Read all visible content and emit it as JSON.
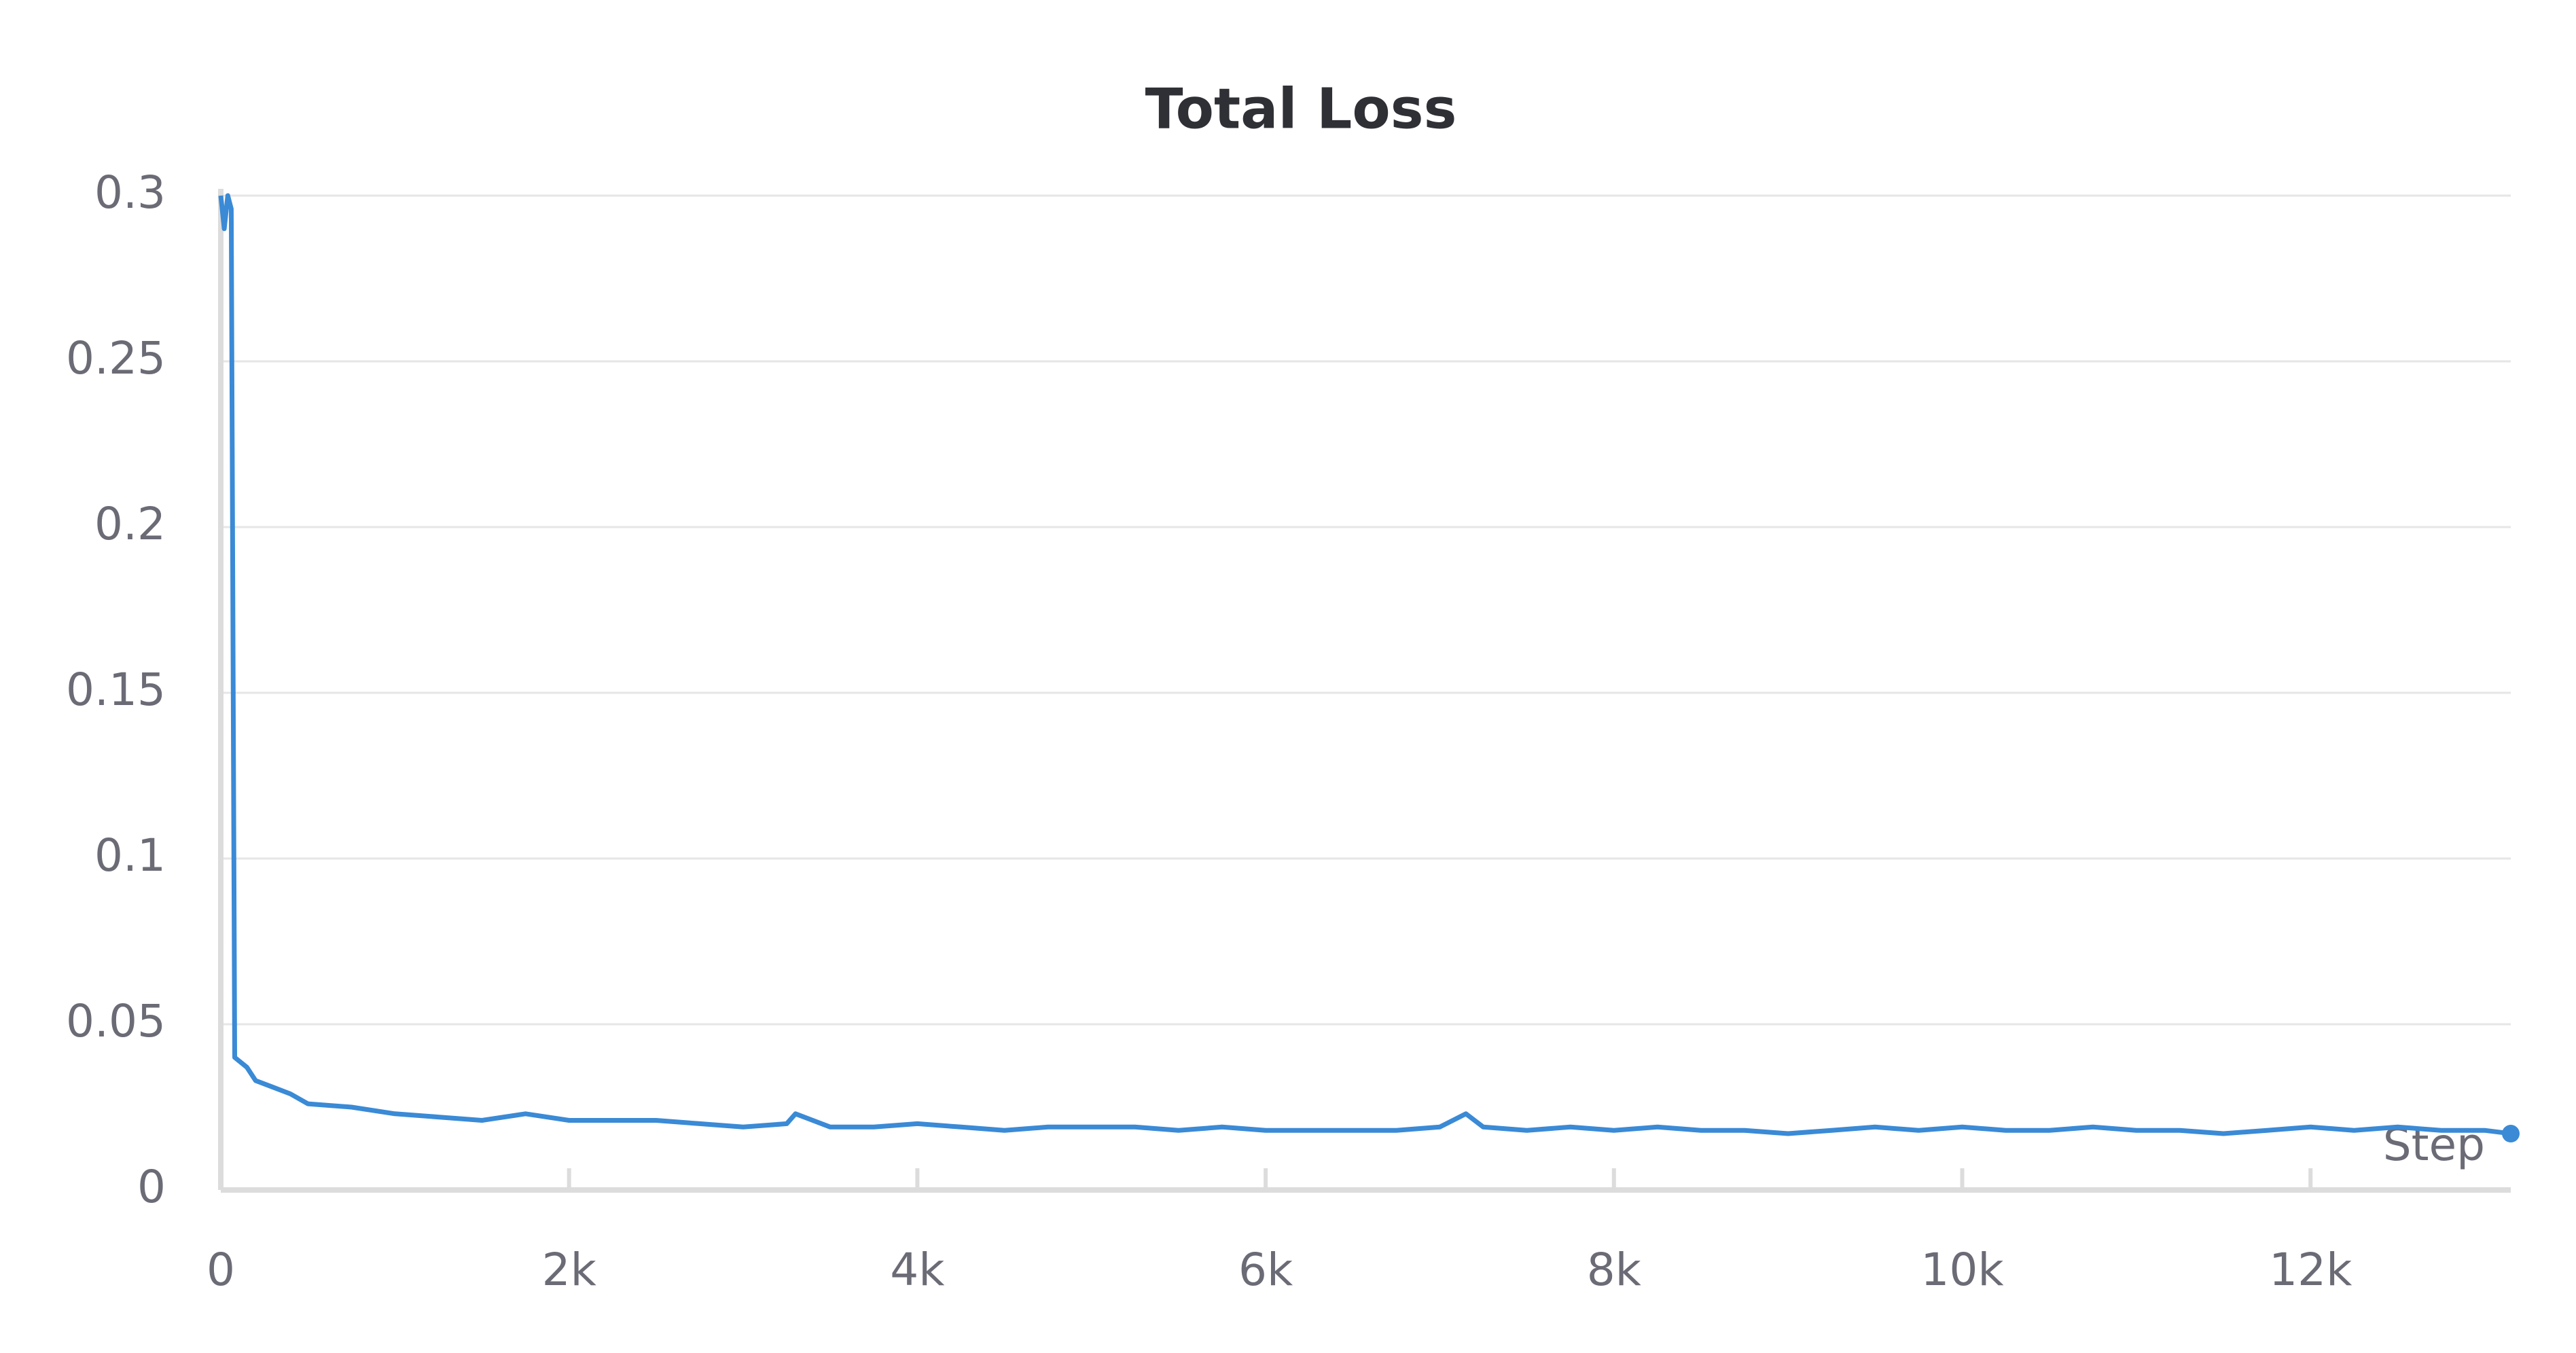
{
  "chart_data": {
    "type": "line",
    "title": "Total Loss",
    "x_label": "Step",
    "x": [
      0,
      20,
      40,
      60,
      80,
      150,
      200,
      300,
      400,
      500,
      750,
      1000,
      1250,
      1500,
      1750,
      2000,
      2250,
      2500,
      2750,
      3000,
      3250,
      3300,
      3500,
      3750,
      4000,
      4250,
      4500,
      4750,
      5000,
      5250,
      5500,
      5750,
      6000,
      6250,
      6500,
      6750,
      7000,
      7150,
      7250,
      7500,
      7750,
      8000,
      8250,
      8500,
      8750,
      9000,
      9250,
      9500,
      9750,
      10000,
      10250,
      10500,
      10750,
      11000,
      11250,
      11500,
      11750,
      12000,
      12250,
      12500,
      12750,
      13000,
      13150
    ],
    "series": [
      {
        "name": "Total Loss",
        "color": "#3a8ad6",
        "values": [
          0.3,
          0.29,
          0.3,
          0.296,
          0.04,
          0.037,
          0.033,
          0.031,
          0.029,
          0.026,
          0.025,
          0.023,
          0.022,
          0.021,
          0.023,
          0.021,
          0.021,
          0.021,
          0.02,
          0.019,
          0.02,
          0.023,
          0.019,
          0.019,
          0.02,
          0.019,
          0.018,
          0.019,
          0.019,
          0.019,
          0.018,
          0.019,
          0.018,
          0.018,
          0.018,
          0.018,
          0.019,
          0.023,
          0.019,
          0.018,
          0.019,
          0.018,
          0.019,
          0.018,
          0.018,
          0.017,
          0.018,
          0.019,
          0.018,
          0.019,
          0.018,
          0.018,
          0.019,
          0.018,
          0.018,
          0.017,
          0.018,
          0.019,
          0.018,
          0.019,
          0.018,
          0.018,
          0.017
        ]
      }
    ],
    "xlim": [
      0,
      13150
    ],
    "ylim": [
      0,
      0.3
    ],
    "xticks": [
      0,
      {
        "value": 2000,
        "label": "2k"
      },
      {
        "value": 4000,
        "label": "4k"
      },
      {
        "value": 6000,
        "label": "6k"
      },
      {
        "value": 8000,
        "label": "8k"
      },
      {
        "value": 10000,
        "label": "10k"
      },
      {
        "value": 12000,
        "label": "12k"
      }
    ],
    "yticks": [
      0,
      0.05,
      0.1,
      0.15,
      0.2,
      0.25,
      0.3
    ],
    "grid": true
  }
}
